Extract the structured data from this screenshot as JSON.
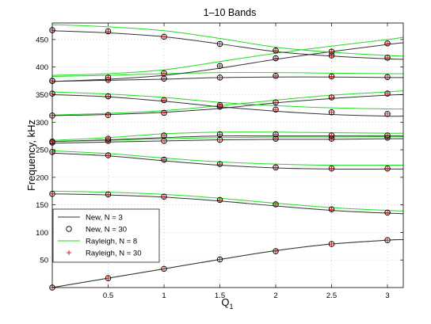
{
  "chart_data": {
    "type": "line",
    "title": "1–10 Bands",
    "xlabel": "Q",
    "xlabel_subscript": "1",
    "ylabel": "Frequency, kHz",
    "xlim": [
      0,
      3.1416
    ],
    "ylim": [
      0,
      480
    ],
    "xticks": [
      0.5,
      1,
      1.5,
      2,
      2.5,
      3
    ],
    "xtick_labels": [
      "0.5",
      "1",
      "1.5",
      "2",
      "2.5",
      "3"
    ],
    "yticks": [
      50,
      100,
      150,
      200,
      250,
      300,
      350,
      400,
      450
    ],
    "ytick_labels": [
      "50",
      "100",
      "150",
      "200",
      "250",
      "300",
      "350",
      "400",
      "450"
    ],
    "grid": true,
    "legend_position": "lower-left",
    "marker_x": [
      0,
      0.5,
      1,
      1.5,
      2,
      2.5,
      3
    ],
    "legend": [
      {
        "label": "New, N = 3",
        "style": "line",
        "color": "#333333"
      },
      {
        "label": "New, N = 30",
        "style": "circle",
        "color": "#000000"
      },
      {
        "label": "Rayleigh, N = 8",
        "style": "line",
        "color": "#22dd22"
      },
      {
        "label": "Rayleigh, N = 30",
        "style": "plus",
        "color": "#dd2222"
      }
    ],
    "bands": [
      {
        "x": [
          0,
          0.5,
          1,
          1.5,
          2,
          2.5,
          3,
          3.1416
        ],
        "new_n3": [
          0,
          17,
          34,
          51,
          67,
          79,
          86,
          87
        ],
        "rayleigh_n8": [
          0,
          17,
          34,
          51,
          67,
          79,
          86,
          87
        ],
        "new_n30": [
          0,
          17,
          34,
          51,
          66,
          79,
          86
        ],
        "rayleigh_n30": [
          0,
          17,
          34,
          51,
          66,
          79,
          86
        ]
      },
      {
        "x": [
          0,
          0.5,
          1,
          1.5,
          2,
          2.5,
          3,
          3.1416
        ],
        "new_n3": [
          170,
          168,
          164,
          157,
          148,
          140,
          135,
          134
        ],
        "rayleigh_n8": [
          175,
          173,
          169,
          162,
          153,
          145,
          140,
          139
        ],
        "new_n30": [
          170,
          169,
          165,
          159,
          151,
          142,
          136
        ],
        "rayleigh_n30": [
          170,
          169,
          165,
          159,
          151,
          142,
          136
        ]
      },
      {
        "x": [
          0,
          0.5,
          1,
          1.5,
          2,
          2.5,
          3,
          3.1416
        ],
        "new_n3": [
          244,
          239,
          230,
          222,
          217,
          215,
          215,
          215
        ],
        "rayleigh_n8": [
          248,
          243,
          235,
          228,
          224,
          222,
          222,
          222
        ],
        "new_n30": [
          246,
          240,
          232,
          224,
          218,
          216,
          216
        ],
        "rayleigh_n30": [
          246,
          240,
          232,
          224,
          218,
          216,
          216
        ]
      },
      {
        "x": [
          0,
          0.5,
          1,
          1.5,
          2,
          2.5,
          3,
          3.1416
        ],
        "new_n3": [
          262,
          264,
          266,
          268,
          269,
          269,
          270,
          270
        ],
        "rayleigh_n8": [
          265,
          267,
          270,
          272,
          273,
          273,
          274,
          274
        ],
        "new_n30": [
          263,
          266,
          266,
          268,
          270,
          270,
          272
        ],
        "rayleigh_n30": [
          263,
          266,
          266,
          268,
          270,
          270,
          272
        ]
      },
      {
        "x": [
          0,
          0.5,
          1,
          1.5,
          2,
          2.5,
          3,
          3.1416
        ],
        "new_n3": [
          265,
          268,
          272,
          275,
          275,
          275,
          275,
          275
        ],
        "rayleigh_n8": [
          267,
          272,
          279,
          282,
          282,
          281,
          280,
          280
        ],
        "new_n30": [
          265,
          270,
          276,
          278,
          278,
          276,
          276
        ],
        "rayleigh_n30": [
          265,
          270,
          276,
          278,
          278,
          276,
          276
        ]
      },
      {
        "x": [
          0,
          0.5,
          1,
          1.5,
          2,
          2.5,
          3,
          3.1416
        ],
        "new_n3": [
          312,
          314,
          318,
          325,
          335,
          343,
          349,
          350
        ],
        "rayleigh_n8": [
          313,
          316,
          321,
          330,
          340,
          349,
          355,
          357
        ],
        "new_n30": [
          312,
          313,
          317,
          328,
          336,
          345,
          352
        ],
        "rayleigh_n30": [
          312,
          313,
          317,
          328,
          336,
          345,
          352
        ]
      },
      {
        "x": [
          0,
          0.5,
          1,
          1.5,
          2,
          2.5,
          3,
          3.1416
        ],
        "new_n3": [
          350,
          346,
          338,
          328,
          320,
          314,
          311,
          311
        ],
        "rayleigh_n8": [
          355,
          351,
          345,
          336,
          330,
          326,
          324,
          324
        ],
        "new_n30": [
          352,
          347,
          340,
          331,
          323,
          318,
          315
        ],
        "rayleigh_n30": [
          352,
          347,
          340,
          331,
          323,
          318,
          315
        ]
      },
      {
        "x": [
          0,
          0.5,
          1,
          1.5,
          2,
          2.5,
          3,
          3.1416
        ],
        "new_n3": [
          374,
          376,
          378,
          381,
          382,
          382,
          381,
          381
        ],
        "rayleigh_n8": [
          383,
          385,
          388,
          390,
          390,
          389,
          388,
          388
        ],
        "new_n30": [
          375,
          377,
          379,
          381,
          384,
          383,
          382
        ],
        "rayleigh_n30": [
          375,
          377,
          379,
          381,
          384,
          383,
          382
        ]
      },
      {
        "x": [
          0,
          0.5,
          1,
          1.5,
          2,
          2.5,
          3,
          3.1416
        ],
        "new_n3": [
          374,
          378,
          385,
          398,
          414,
          428,
          441,
          444
        ],
        "rayleigh_n8": [
          385,
          388,
          395,
          410,
          425,
          438,
          450,
          454
        ],
        "new_n30": [
          375,
          381,
          389,
          402,
          416,
          421,
          417
        ],
        "rayleigh_n30": [
          375,
          381,
          389,
          402,
          416,
          421,
          417
        ]
      },
      {
        "x": [
          0,
          0.5,
          1,
          1.5,
          2,
          2.5,
          3,
          3.1416
        ],
        "new_n3": [
          466,
          462,
          455,
          442,
          428,
          420,
          415,
          414
        ],
        "rayleigh_n8": [
          477,
          473,
          466,
          452,
          436,
          427,
          421,
          420
        ],
        "new_n30": [
          467,
          465,
          455,
          442,
          430,
          428,
          443
        ],
        "rayleigh_n30": [
          467,
          465,
          455,
          442,
          430,
          428,
          443
        ]
      }
    ]
  }
}
